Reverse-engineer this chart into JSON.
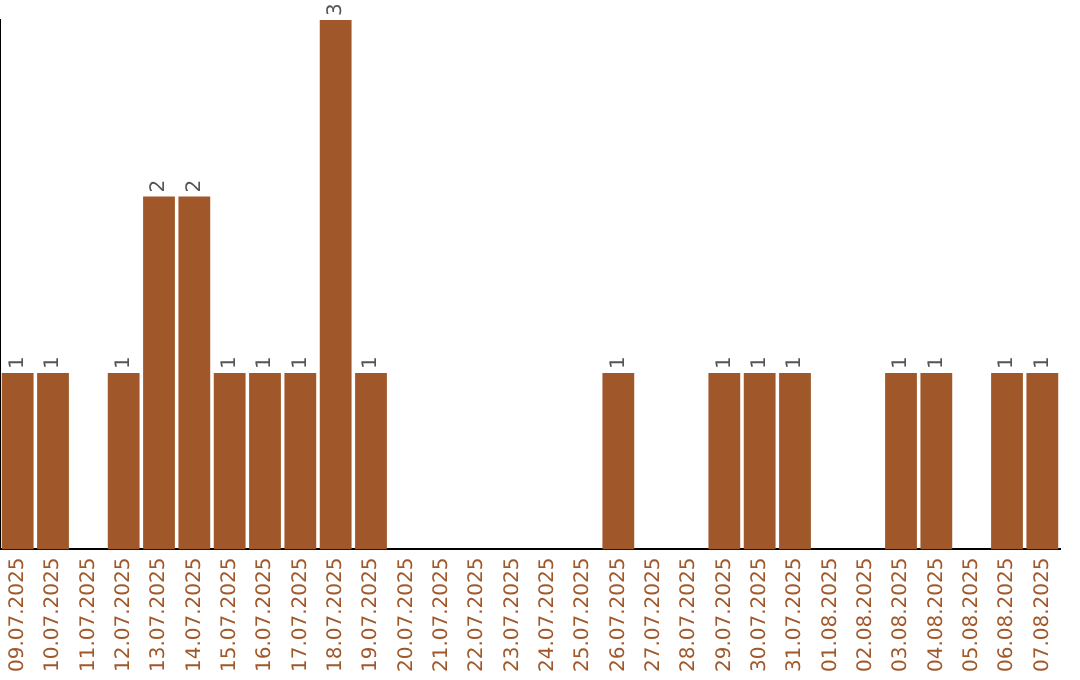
{
  "chart_data": {
    "type": "bar",
    "categories": [
      "09.07.2025",
      "10.07.2025",
      "11.07.2025",
      "12.07.2025",
      "13.07.2025",
      "14.07.2025",
      "15.07.2025",
      "16.07.2025",
      "17.07.2025",
      "18.07.2025",
      "19.07.2025",
      "20.07.2025",
      "21.07.2025",
      "22.07.2025",
      "23.07.2025",
      "24.07.2025",
      "25.07.2025",
      "26.07.2025",
      "27.07.2025",
      "28.07.2025",
      "29.07.2025",
      "30.07.2025",
      "31.07.2025",
      "01.08.2025",
      "02.08.2025",
      "03.08.2025",
      "04.08.2025",
      "05.08.2025",
      "06.08.2025",
      "07.08.2025"
    ],
    "values": [
      1,
      1,
      0,
      1,
      2,
      2,
      1,
      1,
      1,
      3,
      1,
      0,
      0,
      0,
      0,
      0,
      0,
      1,
      0,
      0,
      1,
      1,
      1,
      0,
      0,
      1,
      1,
      0,
      1,
      1
    ],
    "value_labels": [
      "1",
      "1",
      null,
      "1",
      "2",
      "2",
      "1",
      "1",
      "1",
      "3",
      "1",
      null,
      null,
      null,
      null,
      null,
      null,
      "1",
      null,
      null,
      "1",
      "1",
      "1",
      null,
      null,
      "1",
      "1",
      null,
      "1",
      "1"
    ],
    "color": "#a0582a",
    "tick_labels": "x",
    "grid": false,
    "legend": false
  }
}
